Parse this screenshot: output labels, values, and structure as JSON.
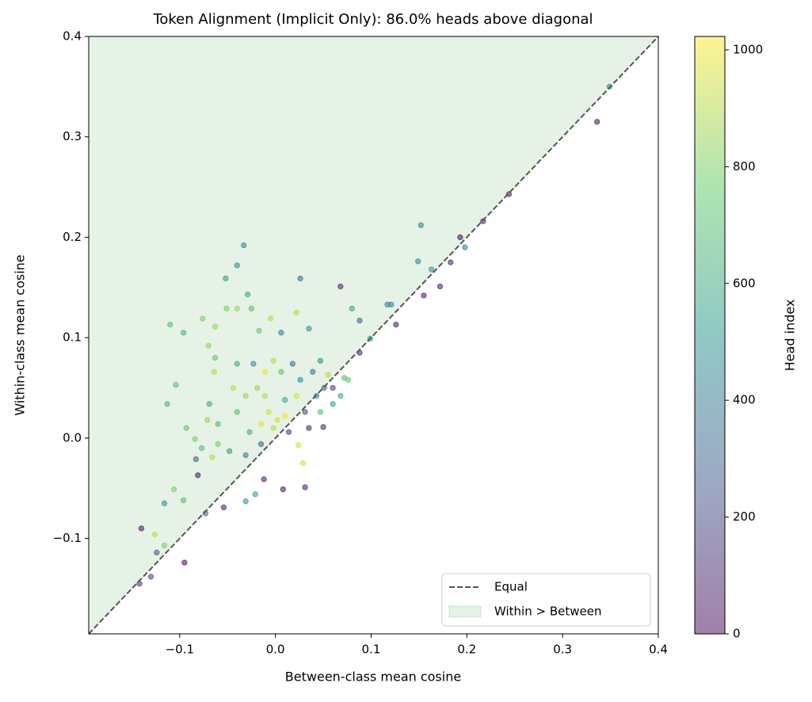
{
  "chart_data": {
    "type": "scatter",
    "title": "Token Alignment (Implicit Only): 86.0% heads above diagonal",
    "x_label": "Between-class mean cosine",
    "y_label": "Within-class mean cosine",
    "colorbar_label": "Head index",
    "colormap": "viridis",
    "clim": [
      0,
      1023
    ],
    "cticks": [
      0,
      200,
      400,
      600,
      800,
      1000
    ],
    "xlim": [
      -0.195,
      0.4
    ],
    "ylim": [
      -0.195,
      0.4
    ],
    "xticks": [
      {
        "value": -0.1,
        "label": "−0.1"
      },
      {
        "value": 0,
        "label": "0.0"
      },
      0.1,
      0.2,
      0.3,
      0.4
    ],
    "yticks": [
      {
        "value": -0.1,
        "label": "−0.1"
      },
      {
        "value": 0,
        "label": "0.0"
      },
      0.1,
      0.2,
      0.3,
      0.4
    ],
    "reference_line": {
      "name": "Equal",
      "color": "#555555"
    },
    "region": {
      "name": "Within > Between",
      "color": "#008000"
    },
    "legend_loc": "lower right",
    "x": [
      0.349,
      0.336,
      0.244,
      0.217,
      0.193,
      0.198,
      0.152,
      0.149,
      0.163,
      0.183,
      0.172,
      0.155,
      -0.033,
      -0.04,
      -0.052,
      0.026,
      0.068,
      -0.11,
      -0.096,
      -0.104,
      -0.113,
      -0.14,
      -0.142,
      -0.13,
      -0.124,
      -0.095,
      -0.126,
      -0.116,
      -0.116,
      -0.106,
      -0.096,
      -0.083,
      -0.081,
      -0.093,
      -0.084,
      -0.054,
      -0.073,
      -0.031,
      -0.012,
      -0.021,
      0.008,
      0.031,
      0.024,
      0.029,
      0.05,
      0.099,
      0.117,
      0.121,
      0.126,
      0.088,
      0.08,
      0.088,
      0.072,
      0.055,
      0.035,
      0.022,
      0.006,
      -0.005,
      -0.017,
      -0.029,
      -0.025,
      -0.04,
      -0.051,
      -0.063,
      -0.076,
      -0.07,
      -0.063,
      -0.064,
      -0.069,
      -0.071,
      -0.06,
      -0.06,
      -0.048,
      -0.066,
      -0.077,
      -0.007,
      0.002,
      -0.011,
      -0.002,
      -0.019,
      0.01,
      0.026,
      0.039,
      0.043,
      0.051,
      0.031,
      0.014,
      -0.015,
      -0.031,
      -0.027,
      -0.04,
      0.006,
      -0.023,
      -0.002,
      0.018,
      0.047,
      0.06,
      0.06,
      0.035,
      0.022,
      -0.011,
      0.01,
      -0.015,
      -0.04,
      -0.044,
      -0.031,
      0.047,
      0.068,
      0.076
    ],
    "y": [
      0.35,
      0.315,
      0.243,
      0.216,
      0.2,
      0.19,
      0.212,
      0.176,
      0.168,
      0.175,
      0.151,
      0.142,
      0.192,
      0.172,
      0.159,
      0.159,
      0.151,
      0.113,
      0.105,
      0.053,
      0.034,
      -0.09,
      -0.145,
      -0.138,
      -0.114,
      -0.124,
      -0.096,
      -0.107,
      -0.065,
      -0.051,
      -0.062,
      -0.021,
      -0.037,
      0.01,
      -0.001,
      -0.069,
      -0.075,
      -0.063,
      -0.041,
      -0.056,
      -0.051,
      -0.049,
      -0.007,
      -0.025,
      0.011,
      0.099,
      0.133,
      0.133,
      0.113,
      0.117,
      0.129,
      0.085,
      0.06,
      0.063,
      0.109,
      0.125,
      0.105,
      0.119,
      0.107,
      0.143,
      0.129,
      0.129,
      0.129,
      0.111,
      0.119,
      0.092,
      0.08,
      0.066,
      0.034,
      0.018,
      0.014,
      -0.006,
      -0.013,
      -0.019,
      -0.01,
      0.026,
      0.018,
      0.042,
      0.01,
      0.05,
      0.038,
      0.058,
      0.066,
      0.042,
      0.05,
      0.026,
      0.006,
      -0.006,
      -0.017,
      0.006,
      0.026,
      0.066,
      0.074,
      0.077,
      0.074,
      0.077,
      0.05,
      0.034,
      0.01,
      0.042,
      0.066,
      0.022,
      0.014,
      0.074,
      0.05,
      0.042,
      0.026,
      0.042,
      0.058
    ],
    "color_values": [
      450,
      30,
      40,
      60,
      20,
      400,
      450,
      450,
      550,
      80,
      60,
      50,
      450,
      480,
      550,
      350,
      80,
      700,
      650,
      700,
      650,
      40,
      150,
      200,
      250,
      30,
      900,
      800,
      500,
      800,
      700,
      300,
      50,
      750,
      800,
      60,
      300,
      500,
      70,
      550,
      40,
      60,
      950,
      950,
      80,
      500,
      400,
      450,
      60,
      300,
      600,
      70,
      700,
      900,
      500,
      900,
      400,
      900,
      750,
      600,
      700,
      850,
      800,
      850,
      800,
      850,
      750,
      900,
      600,
      850,
      700,
      800,
      550,
      900,
      700,
      950,
      950,
      900,
      900,
      850,
      600,
      500,
      400,
      450,
      300,
      200,
      150,
      300,
      400,
      650,
      700,
      750,
      500,
      900,
      350,
      500,
      150,
      550,
      100,
      950,
      1000,
      1000,
      980,
      600,
      900,
      850,
      700,
      600,
      750
    ]
  }
}
